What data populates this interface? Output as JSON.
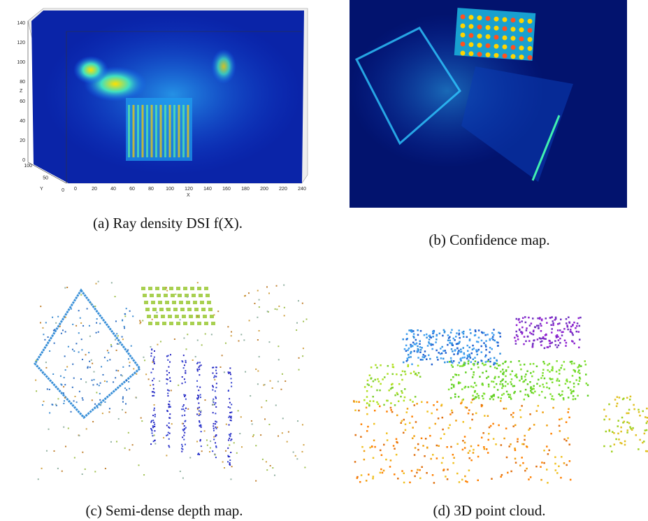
{
  "figure": {
    "panels": [
      {
        "caption": "(a)  Ray density DSI f(X).",
        "axes": {
          "x_label": "X",
          "y_label": "Y",
          "z_label": "Z",
          "x_ticks": [
            0,
            20,
            40,
            60,
            80,
            100,
            120,
            140,
            160,
            180,
            200,
            220,
            240
          ],
          "y_ticks": [
            0,
            50,
            100
          ],
          "z_ticks": [
            0,
            20,
            40,
            60,
            80,
            100,
            120,
            140
          ]
        }
      },
      {
        "caption": "(b)  Confidence map."
      },
      {
        "caption": "(c)  Semi-dense depth map."
      },
      {
        "caption": "(d)  3D point cloud."
      }
    ]
  }
}
